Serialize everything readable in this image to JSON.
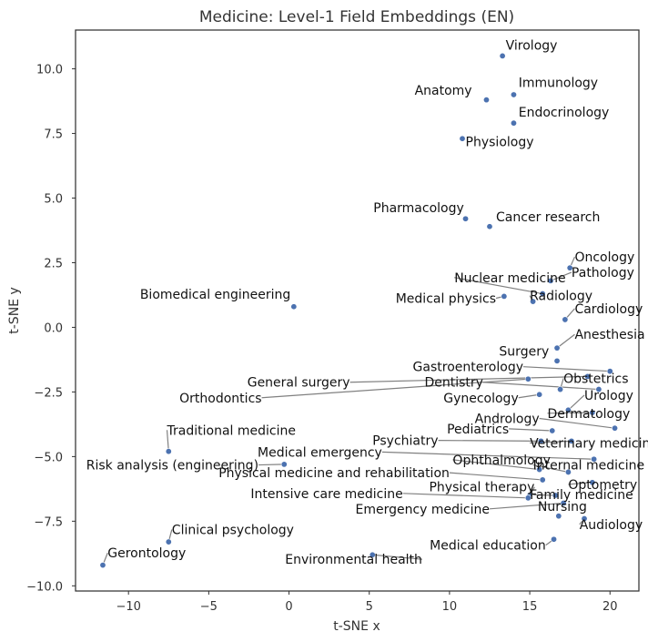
{
  "chart_data": {
    "type": "scatter",
    "title": "Medicine: Level-1 Field Embeddings (EN)",
    "xlabel": "t-SNE x",
    "ylabel": "t-SNE y",
    "xlim": [
      -13.3,
      21.8
    ],
    "ylim": [
      -10.2,
      11.5
    ],
    "xticks": [
      -10,
      -5,
      0,
      5,
      10,
      15,
      20
    ],
    "yticks": [
      -10.0,
      -7.5,
      -5.0,
      -2.5,
      0.0,
      2.5,
      5.0,
      7.5,
      10.0
    ],
    "xtick_labels": [
      "−10",
      "−5",
      "0",
      "5",
      "10",
      "15",
      "20"
    ],
    "ytick_labels": [
      "−10.0",
      "−7.5",
      "−5.0",
      "−2.5",
      "0.0",
      "2.5",
      "5.0",
      "7.5",
      "10.0"
    ],
    "grid": false,
    "marker_color": "#4c72b0",
    "points": [
      {
        "name": "Virology",
        "x": 13.3,
        "y": 10.5
      },
      {
        "name": "Immunology",
        "x": 14.0,
        "y": 9.0
      },
      {
        "name": "Anatomy",
        "x": 12.3,
        "y": 8.8
      },
      {
        "name": "Endocrinology",
        "x": 14.0,
        "y": 7.9
      },
      {
        "name": "Physiology",
        "x": 10.8,
        "y": 7.3
      },
      {
        "name": "Pharmacology",
        "x": 11.0,
        "y": 4.2
      },
      {
        "name": "Cancer research",
        "x": 12.5,
        "y": 3.9
      },
      {
        "name": "Oncology",
        "x": 17.5,
        "y": 2.3
      },
      {
        "name": "Pathology",
        "x": 16.3,
        "y": 1.8
      },
      {
        "name": "Nuclear medicine",
        "x": 15.8,
        "y": 1.3
      },
      {
        "name": "Medical physics",
        "x": 13.4,
        "y": 1.2
      },
      {
        "name": "Radiology",
        "x": 15.2,
        "y": 1.0
      },
      {
        "name": "Biomedical engineering",
        "x": 0.3,
        "y": 0.8
      },
      {
        "name": "Cardiology",
        "x": 17.2,
        "y": 0.3
      },
      {
        "name": "Anesthesia",
        "x": 16.7,
        "y": -0.8
      },
      {
        "name": "Surgery",
        "x": 16.7,
        "y": -1.3
      },
      {
        "name": "Gastroenterology",
        "x": 20.0,
        "y": -1.7
      },
      {
        "name": "General surgery",
        "x": 18.6,
        "y": -1.9
      },
      {
        "name": "Orthodontics",
        "x": 14.9,
        "y": -2.0
      },
      {
        "name": "Obstetrics",
        "x": 16.9,
        "y": -2.4
      },
      {
        "name": "Dentistry",
        "x": 19.3,
        "y": -2.4
      },
      {
        "name": "Gynecology",
        "x": 15.6,
        "y": -2.6
      },
      {
        "name": "Urology",
        "x": 17.4,
        "y": -3.2
      },
      {
        "name": "Dermatology",
        "x": 18.9,
        "y": -3.3
      },
      {
        "name": "Andrology",
        "x": 20.3,
        "y": -3.9
      },
      {
        "name": "Pediatrics",
        "x": 16.4,
        "y": -4.0
      },
      {
        "name": "Traditional medicine",
        "x": -7.5,
        "y": -4.8
      },
      {
        "name": "Psychiatry",
        "x": 15.7,
        "y": -4.4
      },
      {
        "name": "Veterinary medicine",
        "x": 17.6,
        "y": -4.4
      },
      {
        "name": "Medical emergency",
        "x": 19.0,
        "y": -5.1
      },
      {
        "name": "Risk analysis (engineering)",
        "x": -0.3,
        "y": -5.3
      },
      {
        "name": "Ophthalmology",
        "x": 15.6,
        "y": -5.5
      },
      {
        "name": "Internal medicine",
        "x": 17.4,
        "y": -5.6
      },
      {
        "name": "Physical medicine and rehabilitation",
        "x": 15.8,
        "y": -5.9
      },
      {
        "name": "Optometry",
        "x": 18.9,
        "y": -6.0
      },
      {
        "name": "Physical therapy",
        "x": 15.0,
        "y": -6.5
      },
      {
        "name": "Intensive care medicine",
        "x": 14.9,
        "y": -6.6
      },
      {
        "name": "Family medicine",
        "x": 16.6,
        "y": -6.5
      },
      {
        "name": "Emergency medicine",
        "x": 17.1,
        "y": -6.8
      },
      {
        "name": "Nursing",
        "x": 16.8,
        "y": -7.3
      },
      {
        "name": "Audiology",
        "x": 18.4,
        "y": -7.4
      },
      {
        "name": "Medical education",
        "x": 16.5,
        "y": -8.2
      },
      {
        "name": "Clinical psychology",
        "x": -7.5,
        "y": -8.3
      },
      {
        "name": "Environmental health",
        "x": 5.2,
        "y": -8.8
      },
      {
        "name": "Gerontology",
        "x": -11.6,
        "y": -9.2
      }
    ],
    "labels": [
      {
        "text": "Virology",
        "x": 13.5,
        "y": 10.75,
        "anchor": "start",
        "line": false
      },
      {
        "text": "Immunology",
        "x": 14.3,
        "y": 9.3,
        "anchor": "start",
        "line": false
      },
      {
        "text": "Anatomy",
        "x": 11.4,
        "y": 9.0,
        "anchor": "end",
        "line": false
      },
      {
        "text": "Endocrinology",
        "x": 14.3,
        "y": 8.15,
        "anchor": "start",
        "line": false
      },
      {
        "text": "Physiology",
        "x": 11.0,
        "y": 7.0,
        "anchor": "start",
        "line": false
      },
      {
        "text": "Pharmacology",
        "x": 10.9,
        "y": 4.45,
        "anchor": "end",
        "line": false
      },
      {
        "text": "Cancer research",
        "x": 12.9,
        "y": 4.1,
        "anchor": "start",
        "line": false
      },
      {
        "text": "Oncology",
        "x": 17.8,
        "y": 2.55,
        "anchor": "start",
        "line": true
      },
      {
        "text": "Pathology",
        "x": 17.6,
        "y": 1.95,
        "anchor": "start",
        "line": true
      },
      {
        "text": "Nuclear medicine",
        "x": 10.3,
        "y": 1.75,
        "anchor": "start",
        "line": true
      },
      {
        "text": "Medical physics",
        "x": 12.9,
        "y": 0.95,
        "anchor": "end",
        "line": true
      },
      {
        "text": "Radiology",
        "x": 15.0,
        "y": 1.05,
        "anchor": "start",
        "line": true
      },
      {
        "text": "Biomedical engineering",
        "x": 0.1,
        "y": 1.1,
        "anchor": "end",
        "line": false
      },
      {
        "text": "Cardiology",
        "x": 17.8,
        "y": 0.55,
        "anchor": "start",
        "line": true
      },
      {
        "text": "Anesthesia",
        "x": 17.8,
        "y": -0.45,
        "anchor": "start",
        "line": true
      },
      {
        "text": "Surgery",
        "x": 16.2,
        "y": -1.1,
        "anchor": "end",
        "line": false
      },
      {
        "text": "Gastroenterology",
        "x": 14.6,
        "y": -1.7,
        "anchor": "end",
        "line": true
      },
      {
        "text": "General surgery",
        "x": 3.8,
        "y": -2.3,
        "anchor": "end",
        "line": true
      },
      {
        "text": "Orthodontics",
        "x": -1.7,
        "y": -2.9,
        "anchor": "end",
        "line": true
      },
      {
        "text": "Obstetrics",
        "x": 17.1,
        "y": -2.15,
        "anchor": "start",
        "line": true
      },
      {
        "text": "Dentistry",
        "x": 12.1,
        "y": -2.3,
        "anchor": "end",
        "line": true
      },
      {
        "text": "Gynecology",
        "x": 14.3,
        "y": -2.9,
        "anchor": "end",
        "line": true
      },
      {
        "text": "Urology",
        "x": 18.4,
        "y": -2.8,
        "anchor": "start",
        "line": true
      },
      {
        "text": "Dermatology",
        "x": 16.1,
        "y": -3.5,
        "anchor": "start",
        "line": true
      },
      {
        "text": "Andrology",
        "x": 15.6,
        "y": -3.7,
        "anchor": "end",
        "line": true
      },
      {
        "text": "Pediatrics",
        "x": 13.7,
        "y": -4.1,
        "anchor": "end",
        "line": true
      },
      {
        "text": "Traditional medicine",
        "x": -7.6,
        "y": -4.15,
        "anchor": "start",
        "line": true
      },
      {
        "text": "Psychiatry",
        "x": 9.3,
        "y": -4.55,
        "anchor": "end",
        "line": true
      },
      {
        "text": "Veterinary medicine",
        "x": 15.0,
        "y": -4.65,
        "anchor": "start",
        "line": true
      },
      {
        "text": "Medical emergency",
        "x": 5.8,
        "y": -5.0,
        "anchor": "end",
        "line": true
      },
      {
        "text": "Risk analysis (engineering)",
        "x": -1.9,
        "y": -5.5,
        "anchor": "end",
        "line": true
      },
      {
        "text": "Ophthalmology",
        "x": 10.2,
        "y": -5.3,
        "anchor": "start",
        "line": true
      },
      {
        "text": "Internal medicine",
        "x": 15.2,
        "y": -5.5,
        "anchor": "start",
        "line": true
      },
      {
        "text": "Physical medicine and rehabilitation",
        "x": 10.0,
        "y": -5.8,
        "anchor": "end",
        "line": true
      },
      {
        "text": "Optometry",
        "x": 17.4,
        "y": -6.25,
        "anchor": "start",
        "line": true
      },
      {
        "text": "Physical therapy",
        "x": 15.3,
        "y": -6.35,
        "anchor": "end",
        "line": true
      },
      {
        "text": "Intensive care medicine",
        "x": 7.1,
        "y": -6.6,
        "anchor": "end",
        "line": true
      },
      {
        "text": "Family medicine",
        "x": 15.0,
        "y": -6.65,
        "anchor": "start",
        "line": true
      },
      {
        "text": "Emergency medicine",
        "x": 12.5,
        "y": -7.2,
        "anchor": "end",
        "line": true
      },
      {
        "text": "Nursing",
        "x": 15.5,
        "y": -7.1,
        "anchor": "start",
        "line": false
      },
      {
        "text": "Audiology",
        "x": 18.1,
        "y": -7.8,
        "anchor": "start",
        "line": true
      },
      {
        "text": "Medical education",
        "x": 16.0,
        "y": -8.6,
        "anchor": "end",
        "line": true
      },
      {
        "text": "Clinical psychology",
        "x": -7.3,
        "y": -8.0,
        "anchor": "start",
        "line": true
      },
      {
        "text": "Environmental health",
        "x": 8.3,
        "y": -9.15,
        "anchor": "end",
        "line": true
      },
      {
        "text": "Gerontology",
        "x": -11.3,
        "y": -8.9,
        "anchor": "start",
        "line": true
      }
    ]
  }
}
